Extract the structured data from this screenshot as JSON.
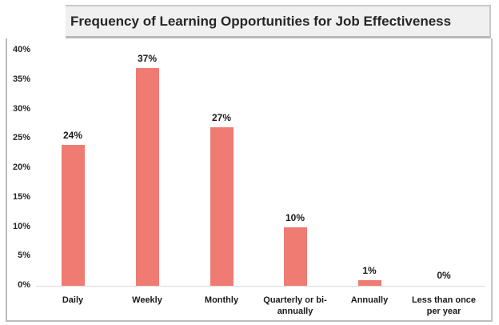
{
  "chart_data": {
    "type": "bar",
    "title": "Frequency of Learning Opportunities for Job Effectiveness",
    "categories": [
      "Daily",
      "Weekly",
      "Monthly",
      "Quarterly or bi-annually",
      "Annually",
      "Less than once per year"
    ],
    "category_lines": [
      [
        "Daily"
      ],
      [
        "Weekly"
      ],
      [
        "Monthly"
      ],
      [
        "Quarterly or bi-",
        "annually"
      ],
      [
        "Annually"
      ],
      [
        "Less than once",
        "per year"
      ]
    ],
    "values": [
      24,
      37,
      27,
      10,
      1,
      0
    ],
    "value_labels": [
      "24%",
      "37%",
      "27%",
      "10%",
      "1%",
      "0%"
    ],
    "xlabel": "",
    "ylabel": "",
    "ylim": [
      0,
      40
    ],
    "yticks": [
      "0%",
      "5%",
      "10%",
      "15%",
      "20%",
      "25%",
      "30%",
      "35%",
      "40%"
    ],
    "grid": false,
    "legend": null,
    "bar_color": "#f07b72"
  }
}
